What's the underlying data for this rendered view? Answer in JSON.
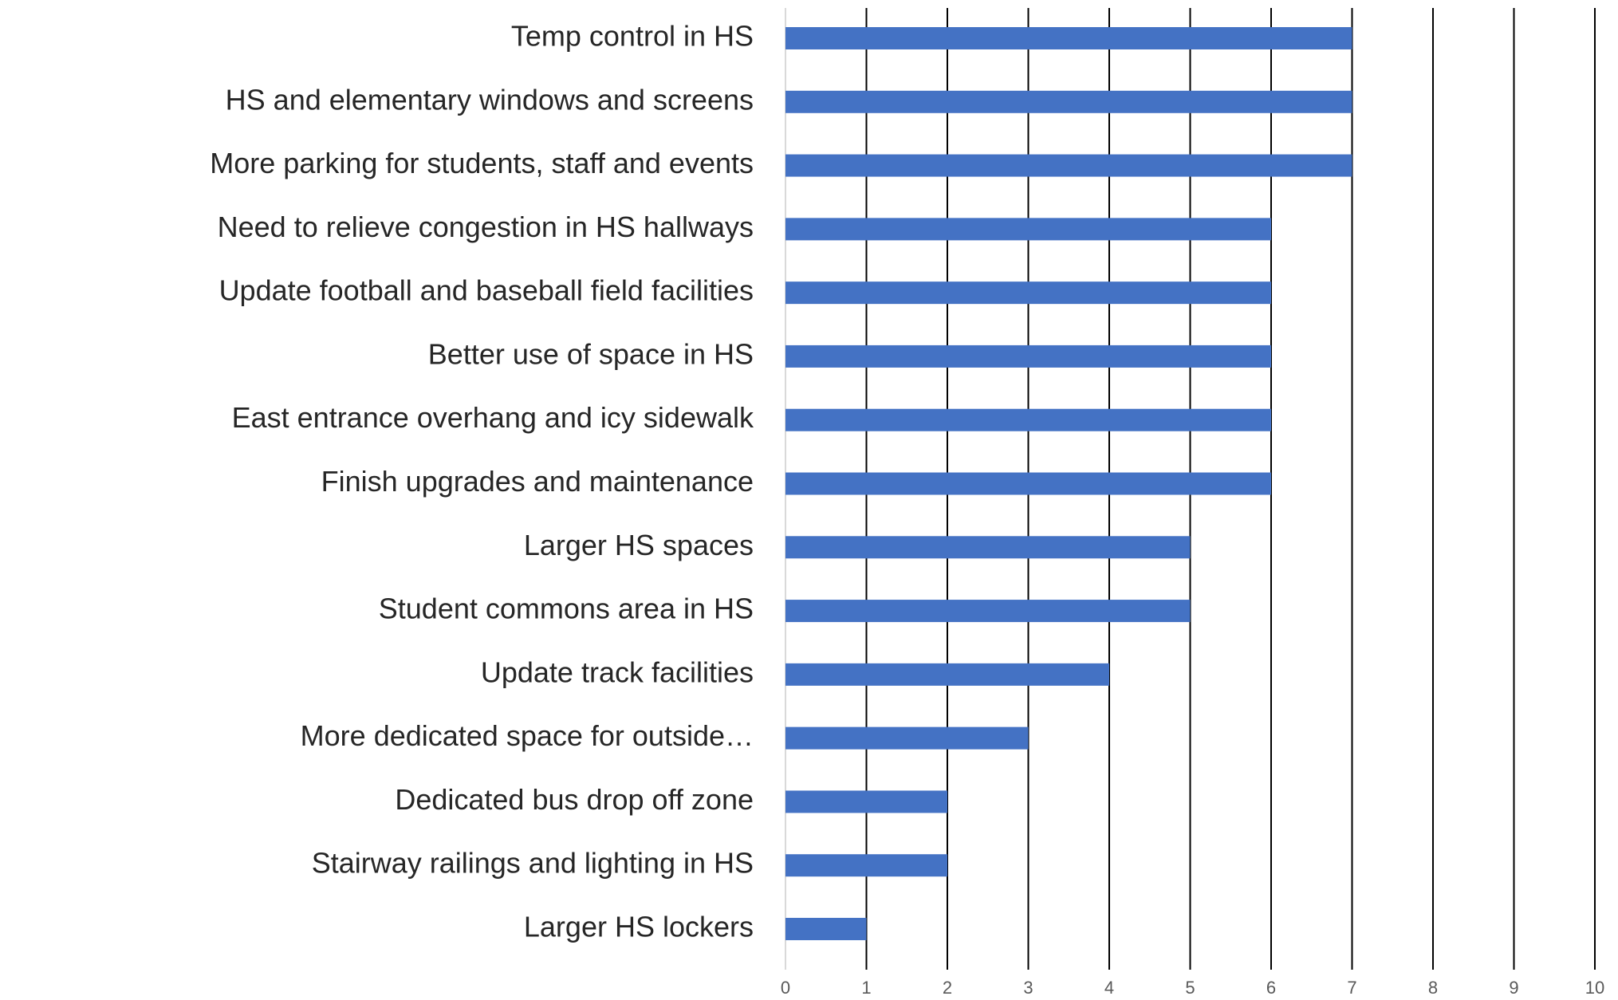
{
  "chart_data": {
    "type": "barh",
    "categories": [
      "Temp control in HS",
      "HS and elementary windows and screens",
      "More parking for students, staff and events",
      "Need to relieve congestion in HS hallways",
      "Update football and baseball field facilities",
      "Better use of space in HS",
      "East entrance overhang and icy sidewalk",
      "Finish upgrades and maintenance",
      "Larger HS spaces",
      "Student commons area in HS",
      "Update track facilities",
      "More dedicated space for outside…",
      "Dedicated bus drop off zone",
      "Stairway railings and lighting in HS",
      "Larger HS lockers"
    ],
    "values": [
      7,
      7,
      7,
      6,
      6,
      6,
      6,
      6,
      5,
      5,
      4,
      3,
      2,
      2,
      1
    ],
    "color": "#4472c4",
    "xlim": [
      0,
      10
    ],
    "xticks": [
      0,
      1,
      2,
      3,
      4,
      5,
      6,
      7,
      8,
      9,
      10
    ],
    "grid": true
  }
}
